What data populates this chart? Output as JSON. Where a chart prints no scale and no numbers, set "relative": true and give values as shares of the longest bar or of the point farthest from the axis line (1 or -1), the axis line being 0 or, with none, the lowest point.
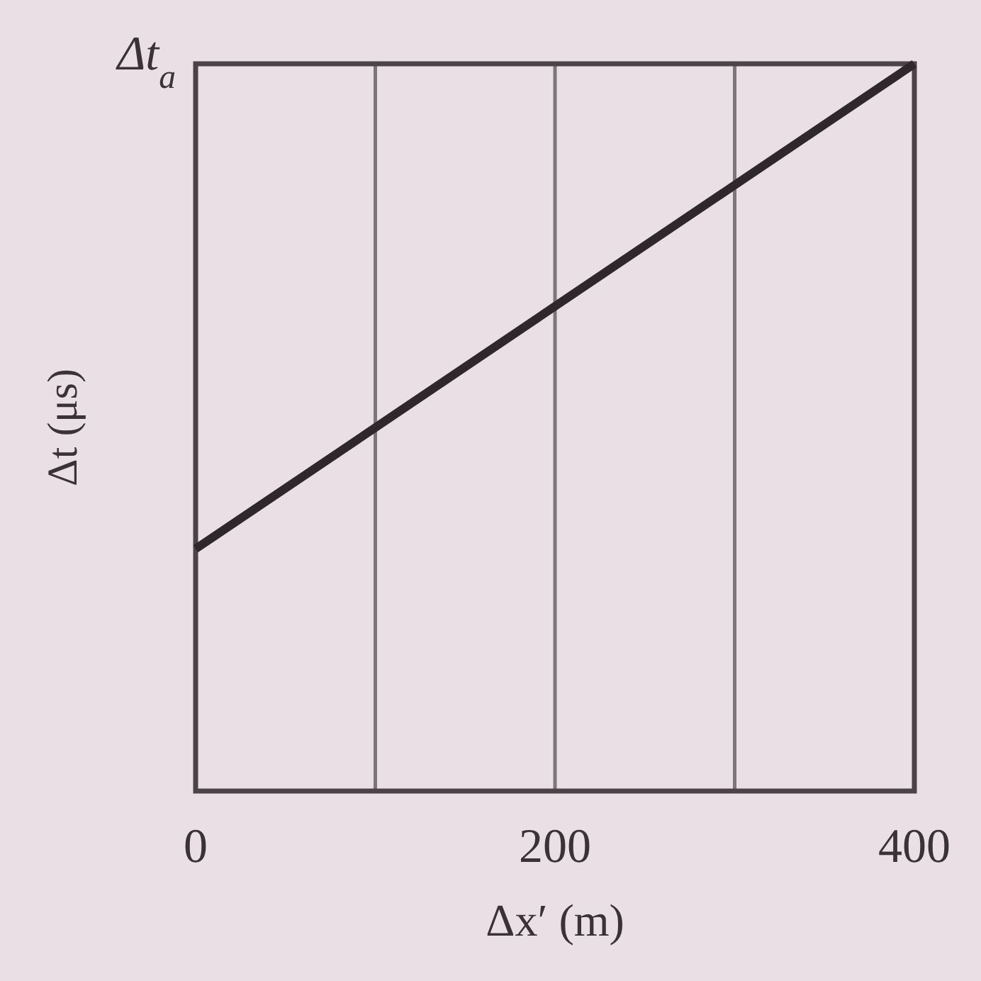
{
  "chart_data": {
    "type": "line",
    "xlabel": "Δx′ (m)",
    "ylabel": "Δt (μs)",
    "x": [
      0,
      400
    ],
    "values": [
      0.333,
      1
    ],
    "color": "#2e272b",
    "relative": true,
    "xlim": [
      0,
      400
    ],
    "xticks": [
      0,
      {
        "value": 100,
        "label": null
      },
      200,
      {
        "value": 300,
        "label": null
      },
      400
    ],
    "annotations": [
      "Δt$_{a}$"
    ],
    "grid": true
  }
}
